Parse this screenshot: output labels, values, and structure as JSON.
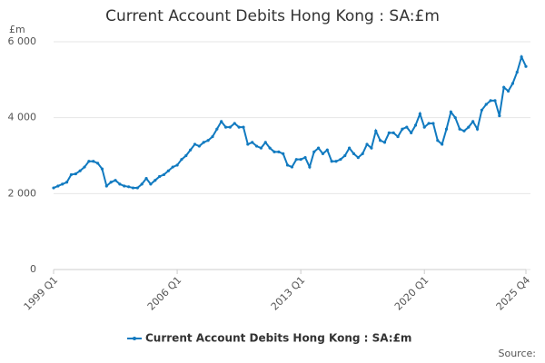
{
  "chart_data": {
    "type": "line",
    "title": "Current Account Debits Hong Kong : SA:£m",
    "y_label": "£m",
    "source": "Source:",
    "categories": [
      "1999 Q1",
      null,
      null,
      null,
      null,
      null,
      null,
      null,
      null,
      null,
      null,
      null,
      null,
      null,
      null,
      null,
      null,
      null,
      null,
      null,
      null,
      null,
      null,
      null,
      null,
      null,
      null,
      null,
      "2006 Q1",
      null,
      null,
      null,
      null,
      null,
      null,
      null,
      null,
      null,
      null,
      null,
      null,
      null,
      null,
      null,
      null,
      null,
      null,
      null,
      null,
      null,
      null,
      null,
      null,
      null,
      null,
      null,
      "2013 Q1",
      null,
      null,
      null,
      null,
      null,
      null,
      null,
      null,
      null,
      null,
      null,
      null,
      null,
      null,
      null,
      null,
      null,
      null,
      null,
      null,
      null,
      null,
      null,
      null,
      null,
      null,
      null,
      "2020 Q1",
      null,
      null,
      null,
      null,
      null,
      null,
      null,
      null,
      null,
      null,
      null,
      null,
      null,
      null,
      null,
      null,
      null,
      null,
      null,
      null,
      null,
      null,
      "2025 Q4"
    ],
    "series": [
      {
        "name": "Current Account Debits Hong Kong : SA:£m",
        "color": "#117ac0",
        "values": [
          2150,
          2200,
          2250,
          2300,
          2500,
          2520,
          2600,
          2700,
          2850,
          2850,
          2800,
          2650,
          2200,
          2300,
          2350,
          2250,
          2200,
          2180,
          2150,
          2150,
          2250,
          2400,
          2250,
          2350,
          2450,
          2500,
          2600,
          2700,
          2750,
          2900,
          3000,
          3150,
          3300,
          3250,
          3350,
          3400,
          3500,
          3700,
          3900,
          3750,
          3750,
          3850,
          3750,
          3750,
          3300,
          3350,
          3250,
          3200,
          3350,
          3200,
          3100,
          3100,
          3050,
          2750,
          2700,
          2900,
          2900,
          2950,
          2700,
          3100,
          3200,
          3050,
          3150,
          2850,
          2850,
          2900,
          3000,
          3200,
          3050,
          2950,
          3050,
          3300,
          3200,
          3650,
          3400,
          3350,
          3600,
          3600,
          3500,
          3700,
          3750,
          3600,
          3800,
          4100,
          3750,
          3850,
          3850,
          3400,
          3300,
          3700,
          4150,
          4000,
          3700,
          3650,
          3750,
          3900,
          3700,
          4200,
          4350,
          4450,
          4450,
          4050,
          4800,
          4700,
          4900,
          5200,
          5600,
          5350
        ]
      }
    ],
    "ylim": [
      0,
      6000
    ],
    "yticks": [
      0,
      {
        "value": 2000,
        "label": "2 000"
      },
      {
        "value": 4000,
        "label": "4 000"
      },
      {
        "value": 6000,
        "label": "6 000"
      }
    ],
    "grid": true
  }
}
